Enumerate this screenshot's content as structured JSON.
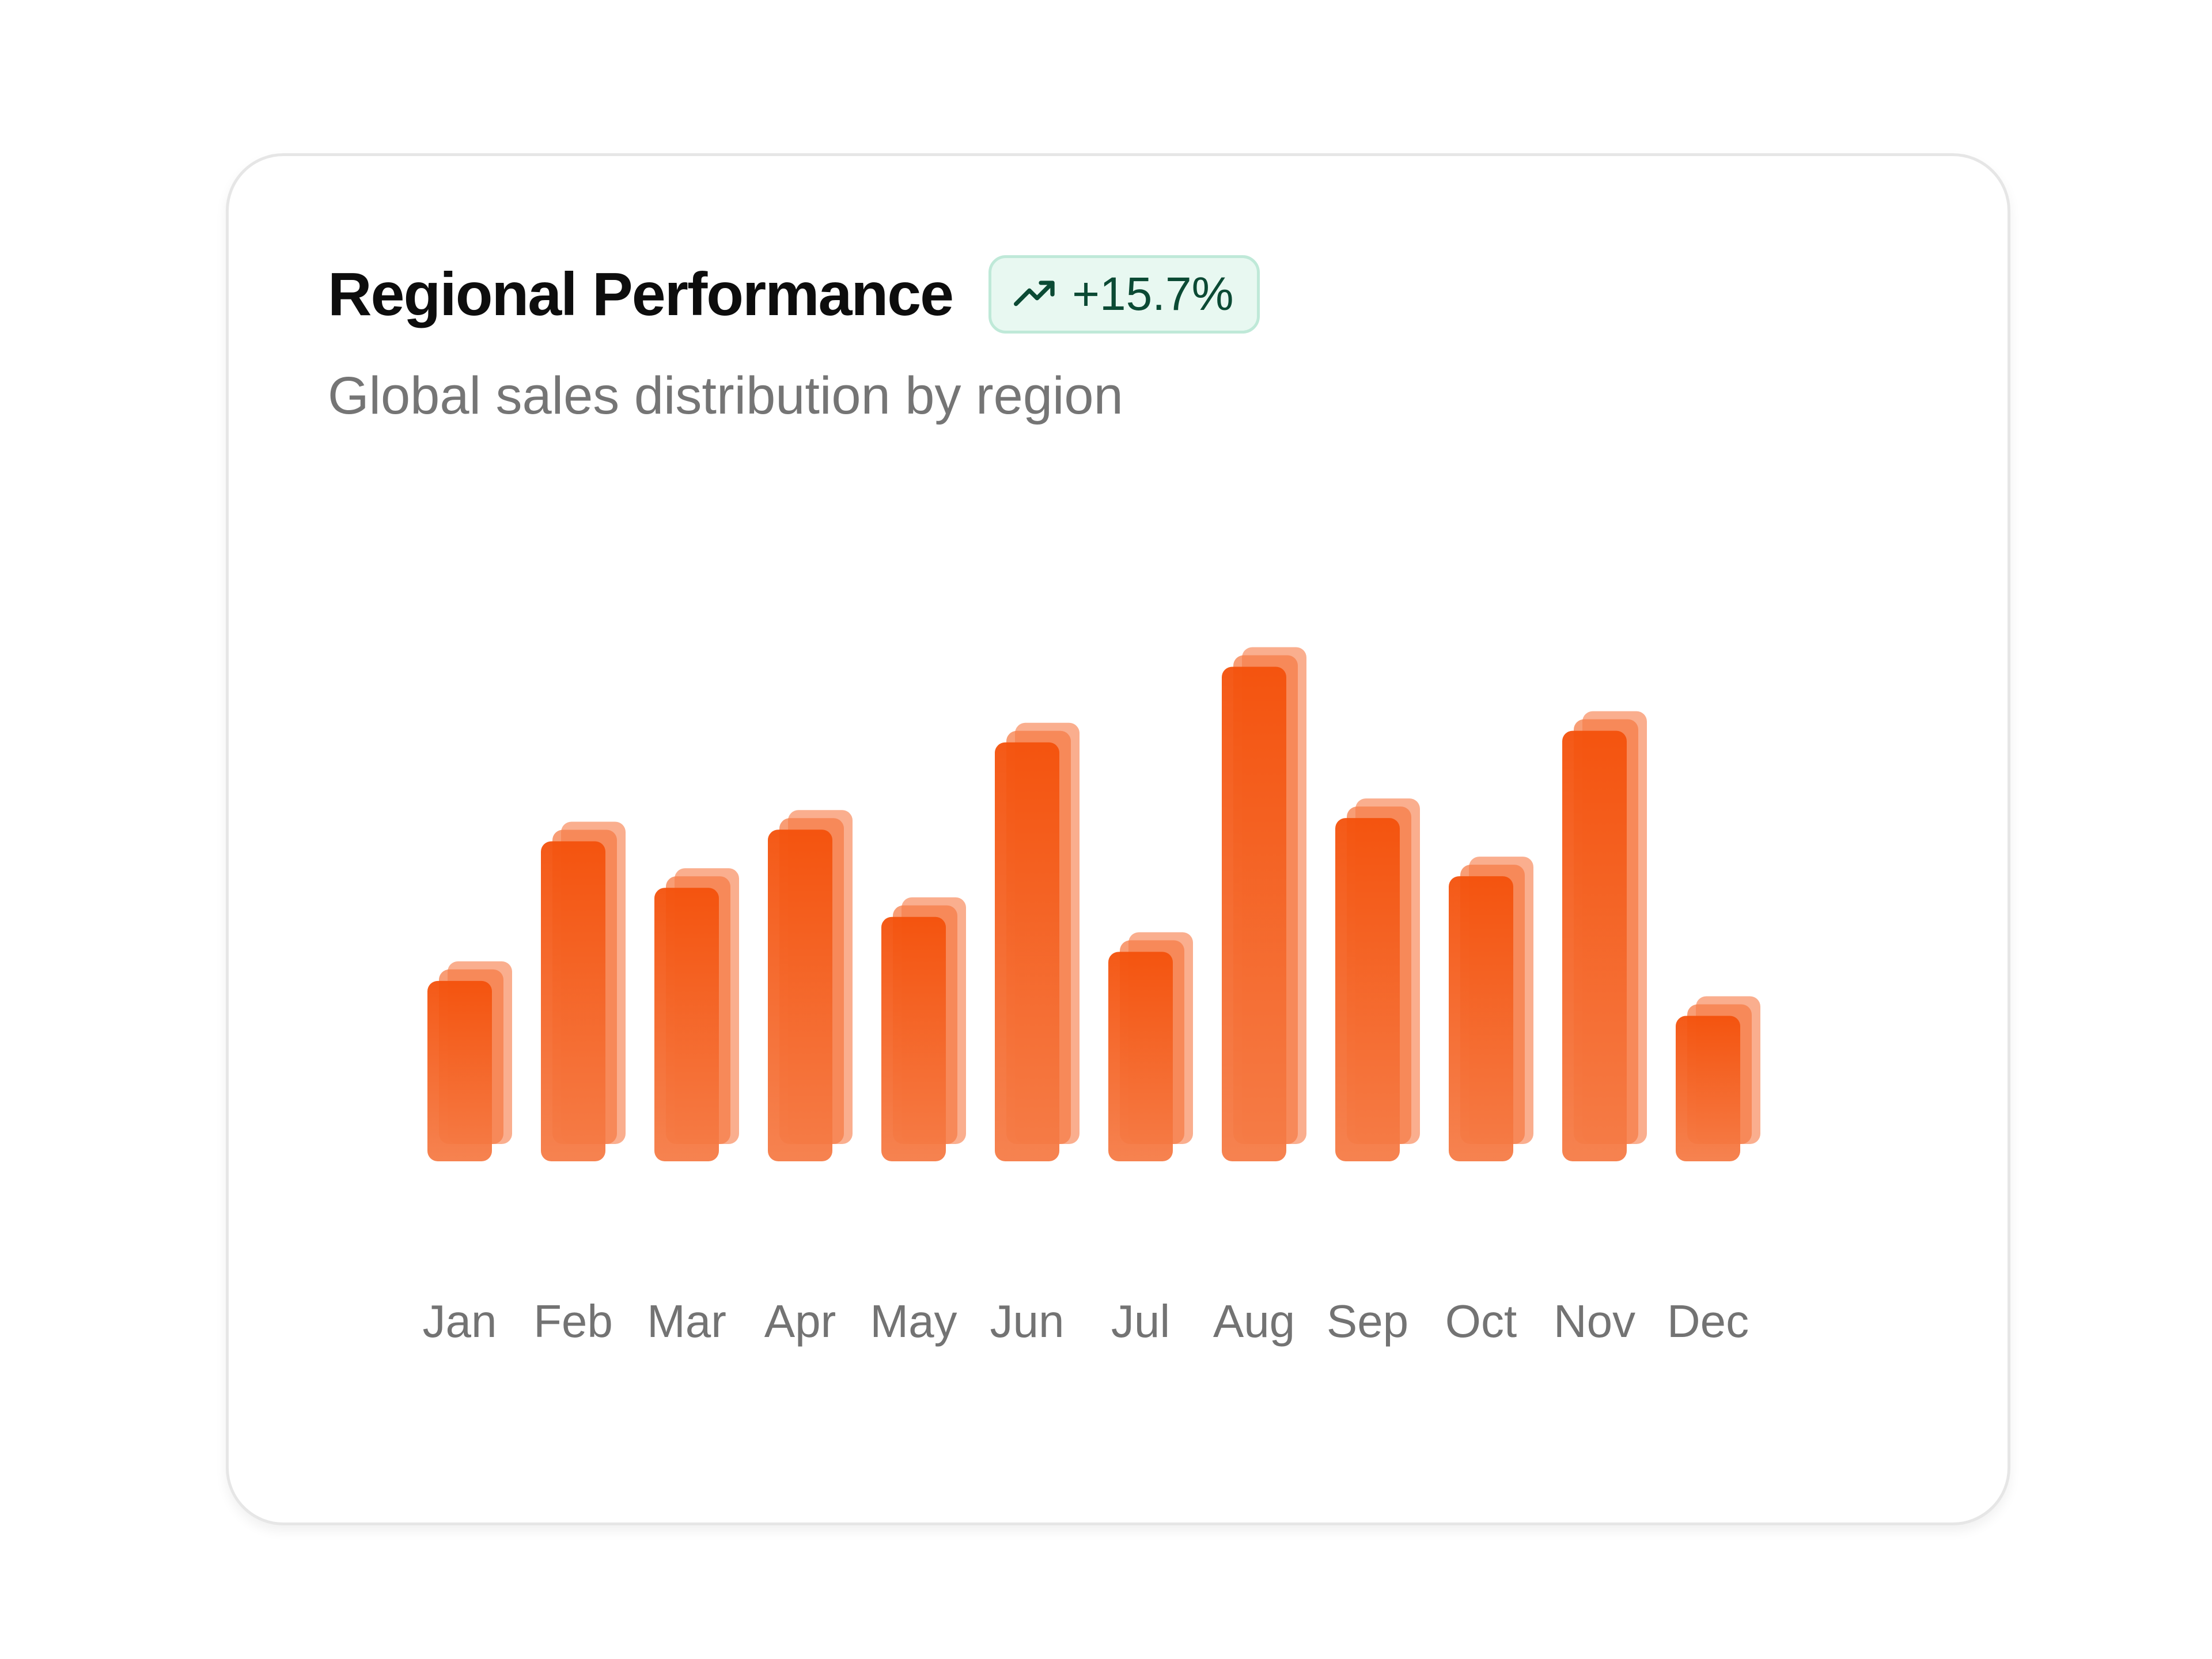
{
  "card": {
    "title": "Regional Performance",
    "subtitle": "Global sales distribution by region",
    "badge": {
      "value": "+15.7%",
      "icon": "trending-up-icon",
      "color": "#0b4a34",
      "background": "#e8f8f1"
    }
  },
  "colors": {
    "bar_top": "#f4510b",
    "bar_bottom": "#f57c47",
    "bar_back": "#f9a07a"
  },
  "chart_data": {
    "type": "bar",
    "title": "Regional Performance",
    "subtitle": "Global sales distribution by region",
    "categories": [
      "Jan",
      "Feb",
      "Mar",
      "Apr",
      "May",
      "Jun",
      "Jul",
      "Aug",
      "Sep",
      "Oct",
      "Nov",
      "Dec"
    ],
    "values": [
      31,
      55,
      47,
      57,
      42,
      72,
      36,
      85,
      59,
      49,
      74,
      25
    ],
    "ylim": [
      0,
      100
    ],
    "grid": false,
    "legend": "none"
  }
}
